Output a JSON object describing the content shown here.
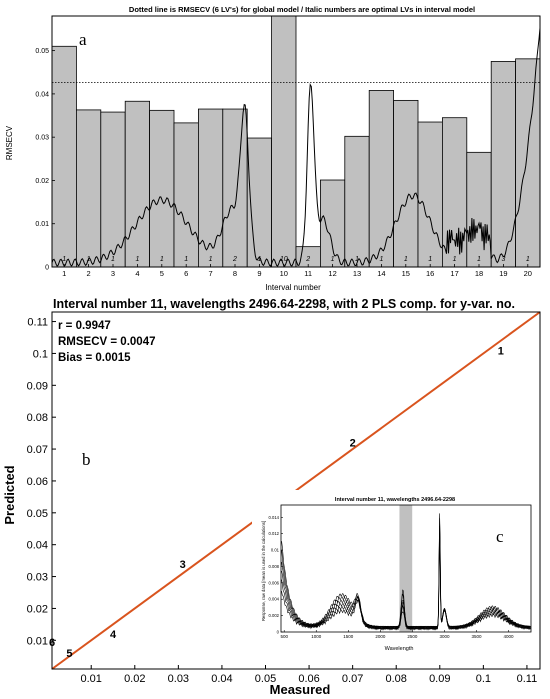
{
  "panels": {
    "a_label": "a",
    "b_label": "b",
    "c_label": "c"
  },
  "chart_data": [
    {
      "type": "bar",
      "title": "Dotted line is RMSECV (6 LV's) for global model / Italic numbers are optimal LVs in interval model",
      "xlabel": "Interval number",
      "ylabel": "RMSECV",
      "categories": [
        "1",
        "2",
        "3",
        "4",
        "5",
        "6",
        "7",
        "8",
        "9",
        "10",
        "11",
        "12",
        "13",
        "14",
        "15",
        "16",
        "17",
        "18",
        "19",
        "20"
      ],
      "values": [
        0.051,
        0.0363,
        0.0358,
        0.0383,
        0.0362,
        0.0333,
        0.0365,
        0.0365,
        0.0298,
        0.06,
        0.0047,
        0.0201,
        0.0302,
        0.0408,
        0.0385,
        0.0335,
        0.0345,
        0.0265,
        0.0475,
        0.0481
      ],
      "optimal_lvs": [
        "1",
        "1",
        "1",
        "1",
        "1",
        "1",
        "1",
        "2",
        "1",
        "10",
        "2",
        "1",
        "1",
        "1",
        "1",
        "1",
        "1",
        "1",
        "3",
        "1"
      ],
      "global_rmsecv": 0.0426,
      "ylim": [
        0,
        0.058
      ],
      "yticks": [
        "0",
        "0.01",
        "0.02",
        "0.03",
        "0.04",
        "0.05"
      ],
      "grid": false
    },
    {
      "type": "scatter",
      "title": "Interval number 11, wavelengths 2496.64-2298, with 2 PLS comp. for y-var. no.",
      "xlabel": "Measured",
      "ylabel": "Predicted",
      "stats": [
        "r = 0.9947",
        "RMSECV = 0.0047",
        "Bias = 0.0015"
      ],
      "points": [
        {
          "label": "1",
          "x": 0.104,
          "y": 0.101
        },
        {
          "label": "2",
          "x": 0.07,
          "y": 0.072
        },
        {
          "label": "3",
          "x": 0.031,
          "y": 0.034
        },
        {
          "label": "4",
          "x": 0.015,
          "y": 0.012
        },
        {
          "label": "5",
          "x": 0.005,
          "y": 0.006
        },
        {
          "label": "6",
          "x": 0.001,
          "y": 0.0095
        }
      ],
      "fit_line": {
        "x": [
          0.001,
          0.113
        ],
        "y": [
          0.001,
          0.113
        ],
        "color": "#d9541e"
      },
      "xlim": [
        0.001,
        0.113
      ],
      "ylim": [
        0.001,
        0.113
      ],
      "xticks": [
        "0.01",
        "0.02",
        "0.03",
        "0.04",
        "0.05",
        "0.06",
        "0.07",
        "0.08",
        "0.09",
        "0.1",
        "0.11"
      ],
      "yticks": [
        "0.01",
        "0.02",
        "0.03",
        "0.04",
        "0.05",
        "0.06",
        "0.07",
        "0.08",
        "0.09",
        "0.1",
        "0.11"
      ],
      "grid": false
    },
    {
      "type": "line",
      "title": "Interval number 11, wavelengths 2496.64-2298",
      "xlabel": "Wavelength",
      "ylabel": "Response, raw data [mean is used in the calculations]",
      "xticks": [
        "500",
        "1000",
        "1500",
        "2000",
        "2500",
        "3000",
        "3500",
        "4000"
      ],
      "yticks": [
        "0",
        "0.002",
        "0.004",
        "0.006",
        "0.008",
        "0.01",
        "0.012",
        "0.014"
      ],
      "xlim": [
        450,
        4350
      ],
      "ylim": [
        0,
        0.0155
      ],
      "highlight_interval": [
        2298,
        2496.64
      ],
      "highlight_color": "#c0c0c0"
    }
  ]
}
